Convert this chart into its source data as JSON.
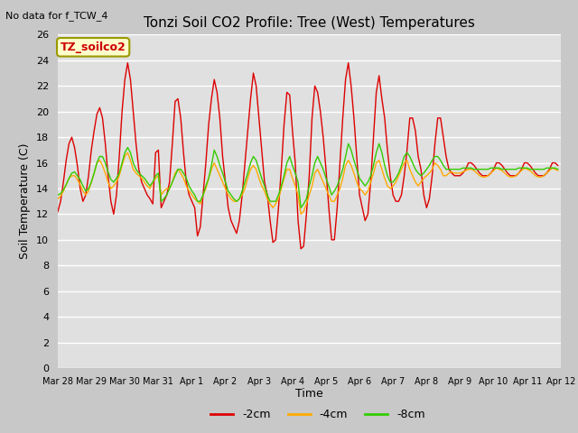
{
  "title": "Tonzi Soil CO2 Profile: Tree (West) Temperatures",
  "note": "No data for f_TCW_4",
  "ylabel": "Soil Temperature (C)",
  "xlabel": "Time",
  "legend_label": "TZ_soilco2",
  "ylim": [
    0,
    26
  ],
  "yticks": [
    0,
    2,
    4,
    6,
    8,
    10,
    12,
    14,
    16,
    18,
    20,
    22,
    24,
    26
  ],
  "fig_bg_color": "#c8c8c8",
  "plot_bg_color": "#e0e0e0",
  "series": {
    "neg2cm": {
      "label": "-2cm",
      "color": "#dd0000"
    },
    "neg4cm": {
      "label": "-4cm",
      "color": "#ffaa00"
    },
    "neg8cm": {
      "label": "-8cm",
      "color": "#33cc00"
    }
  },
  "xtick_labels": [
    "Mar 28",
    "Mar 29",
    "Mar 30",
    "Mar 31",
    "Apr 1",
    "Apr 2",
    "Apr 3",
    "Apr 4",
    "Apr 5",
    "Apr 6",
    "Apr 7",
    "Apr 8",
    "Apr 9",
    "Apr 10",
    "Apr 11",
    "Apr 12"
  ],
  "neg2cm_values": [
    12.2,
    13.0,
    14.5,
    16.2,
    17.5,
    18.0,
    17.2,
    15.8,
    14.0,
    13.0,
    13.5,
    15.0,
    17.0,
    18.5,
    19.8,
    20.3,
    19.5,
    17.5,
    15.0,
    13.0,
    12.0,
    13.5,
    16.5,
    20.0,
    22.5,
    23.8,
    22.5,
    20.0,
    17.5,
    15.5,
    14.5,
    14.0,
    13.5,
    13.2,
    12.8,
    16.8,
    17.0,
    12.5,
    13.0,
    13.5,
    14.5,
    17.5,
    20.8,
    21.0,
    19.5,
    16.8,
    14.5,
    13.5,
    13.0,
    12.5,
    10.3,
    11.0,
    13.5,
    16.0,
    19.0,
    21.0,
    22.5,
    21.5,
    19.5,
    16.5,
    14.5,
    12.5,
    11.5,
    11.0,
    10.5,
    11.5,
    13.5,
    16.0,
    18.5,
    21.0,
    23.0,
    22.0,
    19.5,
    17.0,
    14.5,
    13.5,
    11.5,
    9.8,
    10.0,
    12.5,
    15.5,
    19.0,
    21.5,
    21.3,
    18.5,
    16.0,
    11.5,
    9.3,
    9.5,
    12.0,
    15.0,
    19.5,
    22.0,
    21.5,
    20.0,
    18.0,
    15.5,
    12.5,
    10.0,
    10.0,
    12.5,
    16.0,
    19.5,
    22.5,
    23.8,
    22.0,
    19.5,
    16.5,
    13.5,
    12.5,
    11.5,
    12.0,
    14.5,
    18.0,
    21.5,
    22.8,
    21.0,
    19.5,
    17.0,
    15.0,
    13.5,
    13.0,
    13.0,
    13.5,
    15.0,
    17.0,
    19.5,
    19.5,
    18.5,
    16.5,
    15.5,
    13.5,
    12.5,
    13.2,
    15.0,
    17.5,
    19.5,
    19.5,
    18.0,
    16.5,
    15.5,
    15.2,
    15.0,
    15.0,
    15.0,
    15.2,
    15.5,
    16.0,
    16.0,
    15.8,
    15.5,
    15.2,
    15.0,
    15.0,
    15.0,
    15.2,
    15.5,
    16.0,
    16.0,
    15.8,
    15.5,
    15.2,
    15.0,
    15.0,
    15.0,
    15.2,
    15.5,
    16.0,
    16.0,
    15.8,
    15.5,
    15.2,
    15.0,
    15.0,
    15.0,
    15.2,
    15.5,
    16.0,
    16.0,
    15.8
  ],
  "neg4cm_values": [
    13.2,
    13.4,
    13.8,
    14.3,
    14.8,
    15.0,
    15.0,
    14.7,
    14.3,
    13.8,
    13.5,
    13.8,
    14.5,
    15.2,
    16.0,
    16.2,
    15.8,
    15.2,
    14.5,
    14.0,
    14.2,
    14.5,
    15.0,
    15.8,
    16.5,
    16.8,
    16.2,
    15.5,
    15.2,
    15.0,
    14.8,
    14.5,
    14.2,
    14.0,
    14.5,
    14.8,
    15.0,
    13.5,
    13.8,
    14.0,
    14.0,
    14.5,
    15.2,
    15.5,
    15.2,
    14.8,
    14.2,
    13.8,
    13.5,
    13.2,
    13.0,
    12.8,
    13.5,
    14.0,
    14.8,
    15.5,
    16.0,
    15.5,
    15.0,
    14.5,
    14.0,
    13.5,
    13.2,
    13.0,
    13.0,
    13.2,
    13.5,
    14.0,
    14.8,
    15.5,
    15.8,
    15.5,
    14.8,
    14.2,
    13.8,
    13.2,
    12.8,
    12.5,
    12.8,
    13.2,
    14.0,
    14.8,
    15.5,
    15.5,
    14.8,
    14.2,
    13.5,
    12.0,
    12.2,
    12.8,
    13.5,
    14.2,
    15.2,
    15.5,
    15.0,
    14.5,
    14.0,
    13.5,
    13.0,
    13.0,
    13.5,
    14.0,
    14.8,
    15.8,
    16.2,
    15.8,
    15.2,
    14.5,
    14.0,
    13.8,
    13.5,
    13.8,
    14.5,
    15.2,
    16.0,
    16.2,
    15.5,
    14.8,
    14.2,
    14.0,
    14.2,
    14.5,
    15.0,
    15.5,
    16.0,
    16.2,
    15.5,
    15.0,
    14.5,
    14.2,
    14.5,
    14.8,
    15.0,
    15.2,
    15.5,
    16.0,
    15.8,
    15.5,
    15.0,
    15.0,
    15.2,
    15.3,
    15.2,
    15.2,
    15.2,
    15.3,
    15.4,
    15.5,
    15.5,
    15.4,
    15.2,
    15.0,
    14.9,
    14.9,
    15.0,
    15.2,
    15.4,
    15.6,
    15.5,
    15.4,
    15.2,
    15.0,
    14.9,
    14.9,
    15.0,
    15.2,
    15.4,
    15.6,
    15.5,
    15.4,
    15.2,
    15.0,
    14.9,
    14.9,
    15.0,
    15.2,
    15.4,
    15.6,
    15.5,
    15.4
  ],
  "neg8cm_values": [
    13.5,
    13.6,
    13.9,
    14.3,
    14.8,
    15.2,
    15.3,
    15.0,
    14.7,
    14.2,
    13.8,
    14.0,
    14.5,
    15.2,
    16.0,
    16.5,
    16.5,
    16.0,
    15.3,
    14.7,
    14.5,
    14.8,
    15.2,
    16.0,
    16.8,
    17.2,
    16.8,
    16.0,
    15.5,
    15.2,
    15.0,
    14.8,
    14.5,
    14.2,
    14.5,
    15.0,
    15.2,
    13.0,
    13.2,
    13.5,
    14.0,
    14.5,
    15.0,
    15.5,
    15.5,
    15.2,
    14.8,
    14.2,
    13.8,
    13.5,
    13.0,
    13.0,
    13.5,
    14.2,
    14.8,
    15.8,
    17.0,
    16.5,
    15.8,
    15.2,
    14.5,
    13.8,
    13.5,
    13.2,
    13.0,
    13.2,
    13.8,
    14.5,
    15.2,
    16.0,
    16.5,
    16.2,
    15.5,
    14.8,
    14.2,
    13.5,
    13.0,
    13.0,
    13.0,
    13.5,
    14.2,
    15.0,
    16.0,
    16.5,
    15.8,
    15.2,
    14.5,
    12.5,
    12.8,
    13.2,
    14.2,
    15.0,
    16.0,
    16.5,
    16.0,
    15.5,
    14.8,
    14.2,
    13.5,
    13.8,
    14.2,
    14.8,
    15.5,
    16.5,
    17.5,
    17.0,
    16.2,
    15.5,
    14.8,
    14.5,
    14.2,
    14.5,
    15.0,
    15.8,
    16.8,
    17.5,
    16.8,
    15.8,
    15.0,
    14.5,
    14.5,
    14.8,
    15.2,
    15.8,
    16.5,
    16.8,
    16.5,
    16.0,
    15.5,
    15.2,
    15.0,
    15.2,
    15.5,
    15.8,
    16.2,
    16.5,
    16.5,
    16.2,
    15.8,
    15.5,
    15.5,
    15.5,
    15.5,
    15.5,
    15.5,
    15.6,
    15.6,
    15.6,
    15.6,
    15.5,
    15.5,
    15.5,
    15.5,
    15.5,
    15.5,
    15.6,
    15.6,
    15.6,
    15.6,
    15.5,
    15.5,
    15.5,
    15.5,
    15.5,
    15.5,
    15.6,
    15.6,
    15.6,
    15.6,
    15.5,
    15.5,
    15.5,
    15.5,
    15.5,
    15.5,
    15.6,
    15.6,
    15.6,
    15.6,
    15.5
  ]
}
